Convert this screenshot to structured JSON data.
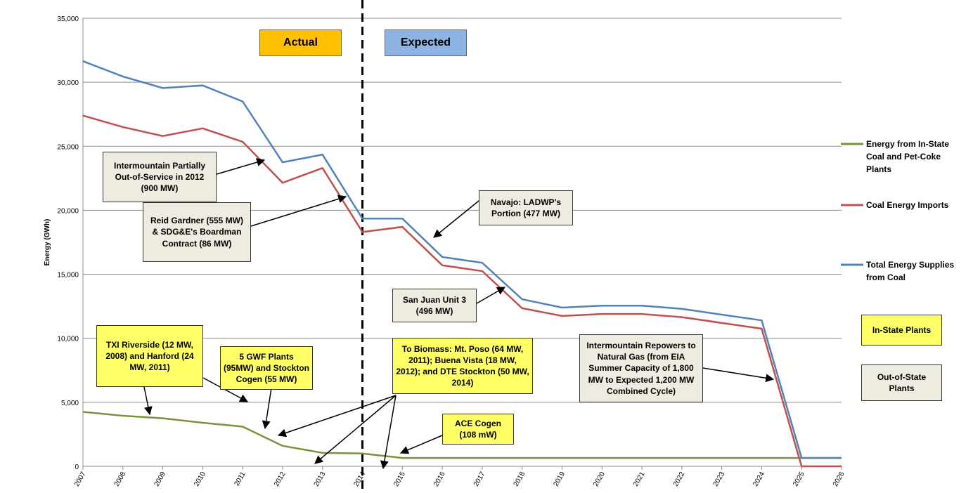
{
  "chart_data": {
    "type": "line",
    "y_label": "Energy (GWh)",
    "categories": [
      "2007",
      "2008",
      "2009",
      "2010",
      "2011",
      "2012",
      "2013",
      "2014",
      "2015",
      "2016",
      "2017",
      "2018",
      "2019",
      "2020",
      "2021",
      "2022",
      "2023",
      "2024",
      "2025",
      "2026"
    ],
    "series": [
      {
        "name": "Energy from In-State Coal and Pet-Coke Plants",
        "color": "#77933c",
        "values": [
          4250,
          3950,
          3750,
          3400,
          3100,
          1600,
          1050,
          1000,
          650,
          650,
          650,
          650,
          650,
          650,
          650,
          650,
          650,
          650,
          650,
          650
        ]
      },
      {
        "name": "Coal Energy Imports",
        "color": "#c0504d",
        "values": [
          27400,
          26500,
          25800,
          26400,
          25350,
          22150,
          23300,
          18300,
          18700,
          15700,
          15250,
          12350,
          11750,
          11900,
          11900,
          11650,
          11200,
          10750,
          0,
          0
        ]
      },
      {
        "name": "Total Energy Supplies from Coal",
        "color": "#4f81bd",
        "values": [
          31650,
          30450,
          29550,
          29750,
          28500,
          23750,
          24350,
          19350,
          19350,
          16350,
          15900,
          13050,
          12400,
          12550,
          12550,
          12300,
          11850,
          11400,
          650,
          650
        ]
      }
    ],
    "ylim": [
      0,
      35000
    ],
    "yticks": [
      0,
      {
        "value": 5000,
        "label": "5,000"
      },
      {
        "value": 10000,
        "label": "10,000"
      },
      {
        "value": 15000,
        "label": "15,000"
      },
      {
        "value": 20000,
        "label": "20,000"
      },
      {
        "value": 25000,
        "label": "25,000"
      },
      {
        "value": 30000,
        "label": "30,000"
      },
      {
        "value": 35000,
        "label": "35,000"
      }
    ],
    "grid": true,
    "period_labels": [
      {
        "text": "Actual",
        "color": "#ffc000"
      },
      {
        "text": "Expected",
        "color": "#8db4e2"
      }
    ],
    "annotations": [
      {
        "text": "Intermountain Partially Out-of-Service in 2012 (900 MW)",
        "color": "#eeece1"
      },
      {
        "text": "Reid Gardner (555 MW) & SDG&E's Boardman Contract (86 MW)",
        "color": "#eeece1"
      },
      {
        "text": "Navajo: LADWP's Portion (477 MW)",
        "color": "#eeece1"
      },
      {
        "text": "San Juan Unit 3 (496 MW)",
        "color": "#eeece1"
      },
      {
        "text": "Intermountain Repowers to Natural Gas (from EIA Summer Capacity of 1,800 MW to Expected 1,200 MW Combined Cycle)",
        "color": "#eeece1"
      },
      {
        "text": "TXI Riverside (12 MW, 2008) and Hanford (24 MW, 2011)",
        "color": "#ffff66"
      },
      {
        "text": "5 GWF Plants (95MW) and Stockton Cogen (55 MW)",
        "color": "#ffff66"
      },
      {
        "text": "To Biomass: Mt. Poso (64 MW, 2011); Buena Vista (18 MW, 2012); and DTE Stockton (50 MW, 2014)",
        "color": "#ffff66"
      },
      {
        "text": "ACE Cogen (108 mW)",
        "color": "#ffff66"
      },
      {
        "text": "In-State Plants",
        "color": "#ffff66"
      },
      {
        "text": "Out-of-State Plants",
        "color": "#eeece1"
      }
    ]
  }
}
